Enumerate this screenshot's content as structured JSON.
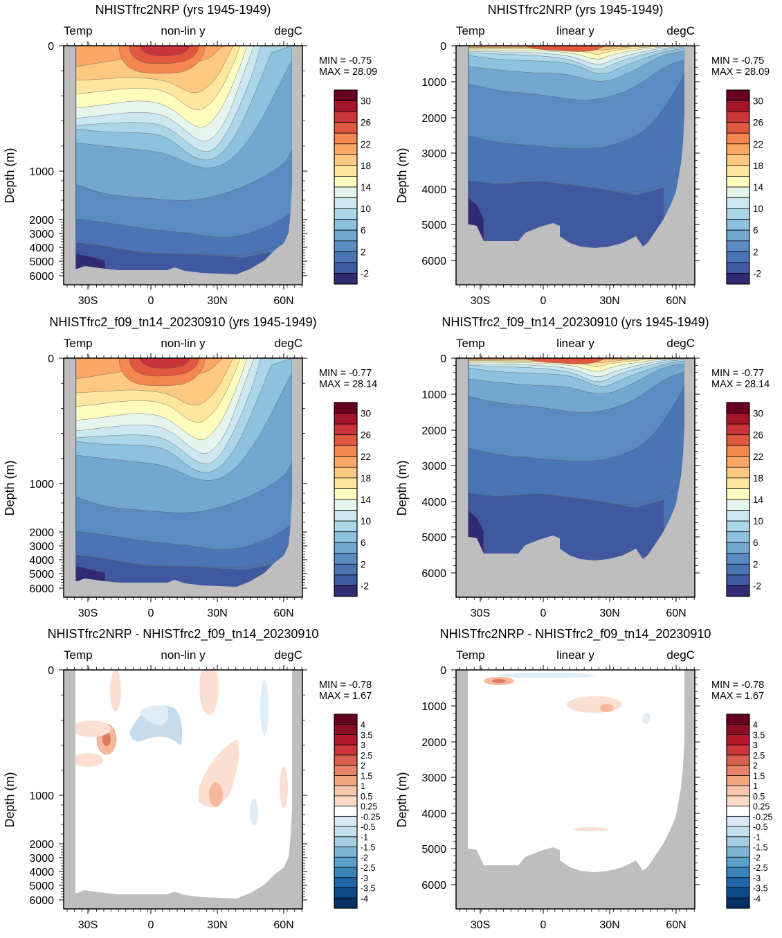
{
  "figure": {
    "panels": [
      {
        "title": "NHISTfrc2NRP (yrs 1945-1949)",
        "left_label": "Temp",
        "center_label": "non-lin y",
        "right_label": "degC",
        "ylabel": "Depth (m)",
        "yscale": "non-linear",
        "stats": {
          "min_text": "MIN =  -0.75",
          "max_text": "MAX =  28.09"
        },
        "colorbar": "temp"
      },
      {
        "title": "NHISTfrc2NRP (yrs 1945-1949)",
        "left_label": "Temp",
        "center_label": "linear y",
        "right_label": "degC",
        "ylabel": "Depth (m)",
        "yscale": "linear",
        "stats": {
          "min_text": "MIN =  -0.75",
          "max_text": "MAX =  28.09"
        },
        "colorbar": "temp"
      },
      {
        "title": "NHISTfrc2_f09_tn14_20230910 (yrs 1945-1949)",
        "left_label": "Temp",
        "center_label": "non-lin y",
        "right_label": "degC",
        "ylabel": "Depth (m)",
        "yscale": "non-linear",
        "stats": {
          "min_text": "MIN =  -0.77",
          "max_text": "MAX =  28.14"
        },
        "colorbar": "temp"
      },
      {
        "title": "NHISTfrc2_f09_tn14_20230910 (yrs 1945-1949)",
        "left_label": "Temp",
        "center_label": "linear y",
        "right_label": "degC",
        "ylabel": "Depth (m)",
        "yscale": "linear",
        "stats": {
          "min_text": "MIN =  -0.77",
          "max_text": "MAX =  28.14"
        },
        "colorbar": "temp"
      },
      {
        "title": "NHISTfrc2NRP - NHISTfrc2_f09_tn14_20230910",
        "left_label": "Temp",
        "center_label": "non-lin y",
        "right_label": "degC",
        "ylabel": "Depth (m)",
        "yscale": "non-linear",
        "stats": {
          "min_text": "MIN =  -0.78",
          "max_text": "MAX =   1.67"
        },
        "colorbar": "diff"
      },
      {
        "title": "NHISTfrc2NRP - NHISTfrc2_f09_tn14_20230910",
        "left_label": "Temp",
        "center_label": "linear y",
        "right_label": "degC",
        "ylabel": "Depth (m)",
        "yscale": "linear",
        "stats": {
          "min_text": "MIN =  -0.78",
          "max_text": "MAX =   1.67"
        },
        "colorbar": "diff"
      }
    ],
    "x_ticks": [
      "30S",
      "0",
      "30N",
      "60N"
    ],
    "y_ticks_nonlinear": [
      "0",
      "1000",
      "2000",
      "3000",
      "4000",
      "5000",
      "6000"
    ],
    "y_ticks_linear": [
      "0",
      "1000",
      "2000",
      "3000",
      "4000",
      "5000",
      "6000"
    ],
    "colorbars": {
      "temp": {
        "labels": [
          "30",
          "26",
          "22",
          "18",
          "14",
          "10",
          "6",
          "2",
          "-2"
        ],
        "colors": [
          "#67001f",
          "#a51429",
          "#c9353a",
          "#e0583f",
          "#f4874e",
          "#fba766",
          "#fdc981",
          "#fee69f",
          "#fffdbd",
          "#e6f5ec",
          "#cde7f0",
          "#abd6e8",
          "#8dc2de",
          "#72a8d0",
          "#5a8cc1",
          "#4a74b4",
          "#3f58a0",
          "#312b74"
        ]
      },
      "diff": {
        "labels": [
          "4",
          "3.5",
          "3",
          "2.5",
          "2",
          "1.5",
          "1",
          "0.5",
          "0.25",
          "-0.25",
          "-0.5",
          "-1",
          "-1.5",
          "-2",
          "-2.5",
          "-3",
          "-3.5",
          "-4"
        ],
        "colors": [
          "#67001f",
          "#8c0b25",
          "#b2182b",
          "#c9353a",
          "#d6604d",
          "#e58368",
          "#f4a582",
          "#f9c7ad",
          "#fddbc7",
          "#ffffff",
          "#d9e9f3",
          "#c5e0ee",
          "#a4cde3",
          "#7fb6d6",
          "#5aa0ca",
          "#3a84bb",
          "#2166ac",
          "#0d4a8a",
          "#053061"
        ]
      }
    }
  }
}
